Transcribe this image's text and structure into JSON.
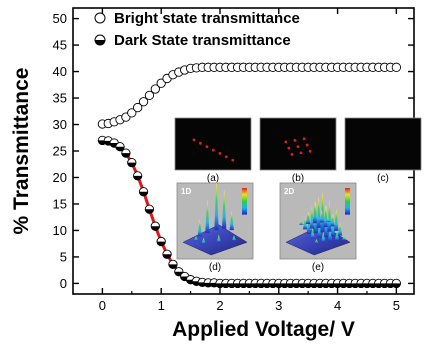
{
  "chart_data": {
    "type": "scatter",
    "xlabel": "Applied Voltage/ V",
    "ylabel": "% Transmittance",
    "xlim": [
      -0.5,
      5.3
    ],
    "ylim": [
      -2,
      52
    ],
    "xticks": [
      0,
      1,
      2,
      3,
      4,
      5
    ],
    "yticks": [
      0,
      5,
      10,
      15,
      20,
      25,
      30,
      35,
      40,
      45,
      50
    ],
    "grid": false,
    "legend_position": "top-left",
    "series": [
      {
        "name": "Bright state transmittance",
        "marker": "open-circle",
        "color": "#000000",
        "x": [
          0.0,
          0.1,
          0.2,
          0.3,
          0.4,
          0.5,
          0.6,
          0.7,
          0.8,
          0.9,
          1.0,
          1.1,
          1.2,
          1.3,
          1.4,
          1.5,
          1.6,
          1.7,
          1.8,
          1.9,
          2.0,
          2.1,
          2.2,
          2.3,
          2.4,
          2.5,
          2.6,
          2.7,
          2.8,
          2.9,
          3.0,
          3.1,
          3.2,
          3.3,
          3.4,
          3.5,
          3.6,
          3.7,
          3.8,
          3.9,
          4.0,
          4.1,
          4.2,
          4.3,
          4.4,
          4.5,
          4.6,
          4.7,
          4.8,
          4.9,
          5.0
        ],
        "y": [
          30.1,
          30.2,
          30.5,
          30.9,
          31.4,
          32.2,
          33.2,
          34.3,
          35.5,
          36.7,
          37.8,
          38.7,
          39.4,
          39.9,
          40.3,
          40.6,
          40.7,
          40.8,
          40.8,
          40.8,
          40.8,
          40.8,
          40.8,
          40.8,
          40.8,
          40.8,
          40.8,
          40.8,
          40.8,
          40.8,
          40.8,
          40.8,
          40.8,
          40.8,
          40.8,
          40.8,
          40.8,
          40.8,
          40.8,
          40.8,
          40.8,
          40.8,
          40.8,
          40.8,
          40.8,
          40.8,
          40.8,
          40.8,
          40.8,
          40.8,
          40.8
        ]
      },
      {
        "name": "Dark State transmittance",
        "marker": "half-filled-circle",
        "color": "#000000",
        "x": [
          0.0,
          0.1,
          0.2,
          0.3,
          0.4,
          0.5,
          0.6,
          0.7,
          0.8,
          0.9,
          1.0,
          1.1,
          1.2,
          1.3,
          1.4,
          1.5,
          1.6,
          1.7,
          1.8,
          1.9,
          2.0,
          2.1,
          2.2,
          2.3,
          2.4,
          2.5,
          2.6,
          2.7,
          2.8,
          2.9,
          3.0,
          3.1,
          3.2,
          3.3,
          3.4,
          3.5,
          3.6,
          3.7,
          3.8,
          3.9,
          4.0,
          4.1,
          4.2,
          4.3,
          4.4,
          4.5,
          4.6,
          4.7,
          4.8,
          4.9,
          5.0
        ],
        "y": [
          27.0,
          26.9,
          26.5,
          25.8,
          24.6,
          22.8,
          20.3,
          17.3,
          14.0,
          10.8,
          7.9,
          5.5,
          3.6,
          2.2,
          1.3,
          0.7,
          0.4,
          0.2,
          0.1,
          0.1,
          0.0,
          0.0,
          0.0,
          0.0,
          0.0,
          0.0,
          0.0,
          0.0,
          0.0,
          0.0,
          0.0,
          0.0,
          0.0,
          0.0,
          0.0,
          0.0,
          0.0,
          0.0,
          0.0,
          0.0,
          0.0,
          0.0,
          0.0,
          0.0,
          0.0,
          0.0,
          0.0,
          0.0,
          0.0,
          0.0,
          0.0
        ]
      },
      {
        "marker": "line",
        "color": "#e0161b",
        "x": [
          0.0,
          0.1,
          0.2,
          0.3,
          0.4,
          0.5,
          0.6,
          0.7,
          0.8,
          0.9,
          1.0,
          1.1,
          1.2,
          1.3,
          1.4,
          1.5,
          1.6,
          1.7,
          1.8,
          1.9,
          2.0,
          2.5,
          3.0,
          3.5,
          4.0,
          4.5,
          5.0
        ],
        "y": [
          27.0,
          26.9,
          26.5,
          25.8,
          24.6,
          22.8,
          20.3,
          17.3,
          14.0,
          10.8,
          7.9,
          5.5,
          3.6,
          2.2,
          1.3,
          0.7,
          0.4,
          0.2,
          0.1,
          0.1,
          0.0,
          0.0,
          0.0,
          0.0,
          0.0,
          0.0,
          0.0
        ]
      }
    ],
    "insets": [
      {
        "label": "(a)",
        "type": "diffraction-image",
        "spots": 7,
        "spot_color": "#e02020"
      },
      {
        "label": "(b)",
        "type": "diffraction-image",
        "spots": 9,
        "spot_color": "#e02020"
      },
      {
        "label": "(c)",
        "type": "diffraction-image",
        "spots": 0,
        "spot_color": "#e02020"
      },
      {
        "label": "(d)",
        "type": "3d-surface",
        "tag": "1D"
      },
      {
        "label": "(e)",
        "type": "3d-surface",
        "tag": "2D"
      }
    ]
  }
}
